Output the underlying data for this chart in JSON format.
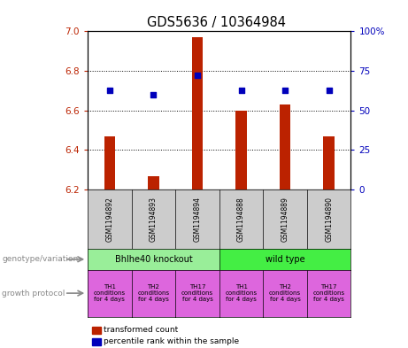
{
  "title": "GDS5636 / 10364984",
  "samples": [
    "GSM1194892",
    "GSM1194893",
    "GSM1194894",
    "GSM1194888",
    "GSM1194889",
    "GSM1194890"
  ],
  "transformed_counts": [
    6.47,
    6.27,
    6.97,
    6.6,
    6.63,
    6.47
  ],
  "percentile_ranks": [
    63,
    60,
    72,
    63,
    63,
    63
  ],
  "ylim_left": [
    6.2,
    7.0
  ],
  "ylim_right": [
    0,
    100
  ],
  "yticks_left": [
    6.2,
    6.4,
    6.6,
    6.8,
    7.0
  ],
  "yticks_right": [
    0,
    25,
    50,
    75,
    100
  ],
  "ytick_right_labels": [
    "0",
    "25",
    "50",
    "75",
    "100%"
  ],
  "bar_color": "#bb2200",
  "dot_color": "#0000bb",
  "bar_width": 0.25,
  "genotype_groups": [
    {
      "label": "Bhlhe40 knockout",
      "span": [
        0,
        3
      ],
      "color": "#99ee99"
    },
    {
      "label": "wild type",
      "span": [
        3,
        6
      ],
      "color": "#44ee44"
    }
  ],
  "growth_protocols": [
    {
      "label": "TH1\nconditions\nfor 4 days",
      "color": "#dd66dd"
    },
    {
      "label": "TH2\nconditions\nfor 4 days",
      "color": "#dd66dd"
    },
    {
      "label": "TH17\nconditions\nfor 4 days",
      "color": "#dd66dd"
    },
    {
      "label": "TH1\nconditions\nfor 4 days",
      "color": "#dd66dd"
    },
    {
      "label": "TH2\nconditions\nfor 4 days",
      "color": "#dd66dd"
    },
    {
      "label": "TH17\nconditions\nfor 4 days",
      "color": "#dd66dd"
    }
  ],
  "legend_red_label": "transformed count",
  "legend_blue_label": "percentile rank within the sample",
  "genotype_label": "genotype/variation",
  "growth_label": "growth protocol",
  "plot_bg_color": "#ffffff",
  "sample_box_color": "#cccccc",
  "fig_bg_color": "#ffffff"
}
